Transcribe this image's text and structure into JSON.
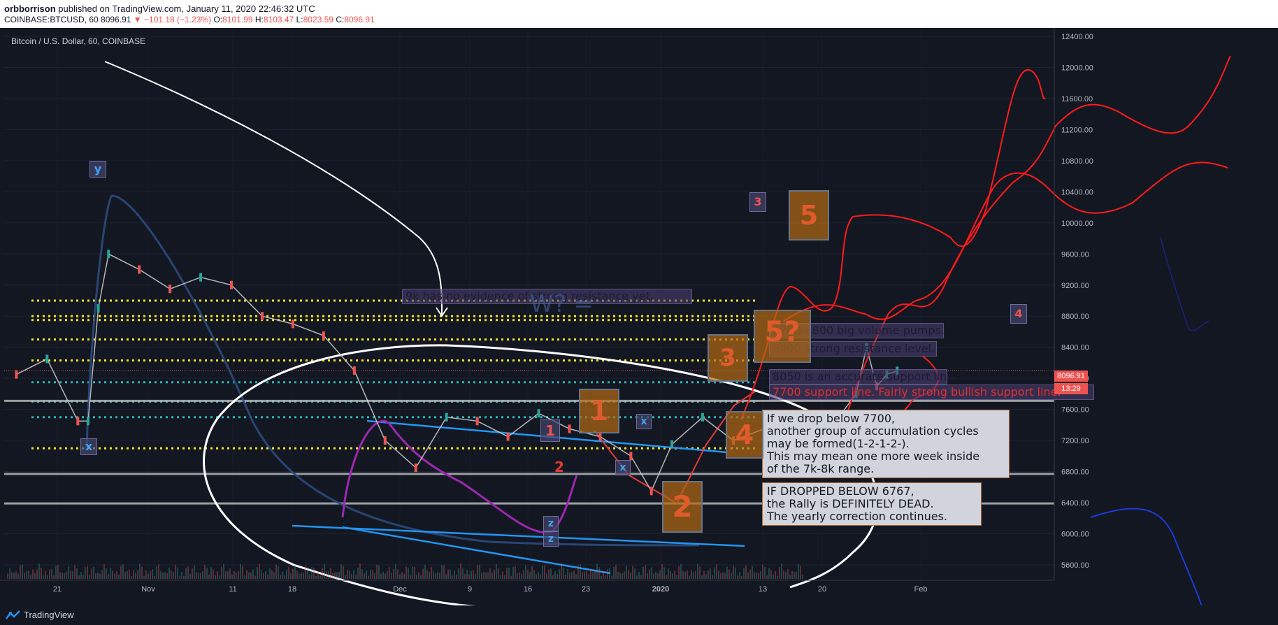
{
  "header": {
    "publisher": "orbborrison",
    "published_text": " published on TradingView.com, January 11, 2020 22:46:32 UTC",
    "symbol_line": "COINBASE:BTCUSD, 60",
    "last": "8096.91",
    "change": "−101.18 (−1.23%)",
    "open_label": "O:",
    "open": "8101.99",
    "high_label": "H:",
    "high": "8103.47",
    "low_label": "L:",
    "low": "8023.59",
    "close_label": "C:",
    "close": "8096.91"
  },
  "chart_data": {
    "type": "line",
    "title": "Bitcoin / U.S. Dollar, 60, COINBASE",
    "y_ticks": [
      "12400.00",
      "12000.00",
      "11600.00",
      "11200.00",
      "10800.00",
      "10400.00",
      "10000.00",
      "9600.00",
      "9200.00",
      "8800.00",
      "8400.00",
      "8000.00",
      "7600.00",
      "7200.00",
      "6800.00",
      "6400.00",
      "6000.00",
      "5600.00"
    ],
    "x_ticks": [
      "21",
      "Nov",
      "11",
      "18",
      "Dec",
      "9",
      "16",
      "23",
      "2020",
      "13",
      "20",
      "Feb"
    ],
    "ylim": [
      5600,
      12400
    ],
    "current_price": "8096.91",
    "countdown": "13:29",
    "series": [
      {
        "values": [
          [
            "2019-10-17",
            8050
          ],
          [
            "2019-10-20",
            8250
          ],
          [
            "2019-10-23",
            7450
          ],
          [
            "2019-10-24",
            7450
          ],
          [
            "2019-10-25",
            8900
          ],
          [
            "2019-10-26",
            9600
          ],
          [
            "2019-10-29",
            9400
          ],
          [
            "2019-11-01",
            9150
          ],
          [
            "2019-11-04",
            9300
          ],
          [
            "2019-11-07",
            9200
          ],
          [
            "2019-11-10",
            8800
          ],
          [
            "2019-11-13",
            8700
          ],
          [
            "2019-11-16",
            8550
          ],
          [
            "2019-11-19",
            8100
          ],
          [
            "2019-11-22",
            7200
          ],
          [
            "2019-11-25",
            6850
          ],
          [
            "2019-11-28",
            7500
          ],
          [
            "2019-12-01",
            7450
          ],
          [
            "2019-12-04",
            7250
          ],
          [
            "2019-12-07",
            7550
          ],
          [
            "2019-12-10",
            7350
          ],
          [
            "2019-12-13",
            7250
          ],
          [
            "2019-12-16",
            7000
          ],
          [
            "2019-12-18",
            6550
          ],
          [
            "2019-12-20",
            7150
          ],
          [
            "2019-12-23",
            7500
          ],
          [
            "2019-12-26",
            7200
          ],
          [
            "2019-12-29",
            7350
          ],
          [
            "2020-01-01",
            7200
          ],
          [
            "2020-01-03",
            6900
          ],
          [
            "2020-01-05",
            7450
          ],
          [
            "2020-01-07",
            7800
          ],
          [
            "2020-01-08",
            8400
          ],
          [
            "2020-01-09",
            7900
          ],
          [
            "2020-01-10",
            8050
          ],
          [
            "2020-01-11",
            8097
          ]
        ]
      }
    ],
    "levels": [
      9000,
      8800,
      8750,
      8500,
      8230,
      7950,
      7700,
      7500,
      7100
    ]
  },
  "annotations": {
    "resistance_9k": "9k has no evidence of strong resistance yet.",
    "big_volume": "8700-8800 big volume pumps.",
    "strong_resistance": "8400 strong resistance level.",
    "support_line": "8050 is an accurate support line.",
    "bullish_support": "7700 support line. Fairly strong bullish support line.",
    "drop_7700": "If we drop below 7700,\nanother group of accumulation cycles\nmay be formed(1-2-1-2-).\nThis may mean one more week inside\nof the 7k-8k range.",
    "drop_6767": "IF DROPPED BELOW 6767,\nthe Rally is DEFINITELY DEAD.\nThe yearly correction continues.",
    "wave_question": "W? = ",
    "wave_labels": {
      "y": "y",
      "x1": "x",
      "x2": "x",
      "x3": "x",
      "z1": "z",
      "z2": "z",
      "n1": "1",
      "n2": "2",
      "n3": "3",
      "n4": "4",
      "n5": "5",
      "n5q": "5?"
    }
  },
  "footer": {
    "brand": "TradingView"
  },
  "colors": {
    "background": "#131722",
    "price_up": "#26a69a",
    "price_down": "#ef5350",
    "level_yellow": "#f5e12b",
    "level_teal": "#2bb5b5",
    "level_gray": "#c0c0c0",
    "trendline_blue": "#2196f3",
    "projection_red": "#ff1a1a",
    "arc_white": "#ffffff"
  }
}
